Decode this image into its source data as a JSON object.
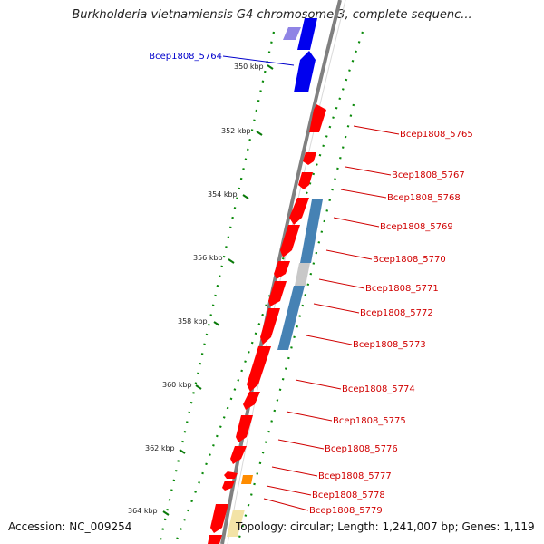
{
  "title": "Burkholderia vietnamiensis G4 chromosome 3, complete sequenc...",
  "footer": {
    "accession": "Accession: NC_009254",
    "topology": "Topology: circular; Length: 1,241,007 bp; Genes: 1,119"
  },
  "colors": {
    "forward_gene": "#ff0000",
    "reverse_gene": "#0000ff",
    "faded_gene": "#7b6fe0",
    "cds_feature": "#4682b4",
    "gray_feature": "#c8c8c8",
    "orange_feature": "#ff8c00",
    "pale_feature": "#f5e6a8",
    "backbone": "#808080",
    "tick_dots": "#008000",
    "label_red": "#cc0000",
    "label_blue": "#0000cc"
  },
  "kbp_ticks": [
    {
      "label": "350 kbp",
      "kbp": 350
    },
    {
      "label": "352 kbp",
      "kbp": 352
    },
    {
      "label": "354 kbp",
      "kbp": 354
    },
    {
      "label": "356 kbp",
      "kbp": 356
    },
    {
      "label": "358 kbp",
      "kbp": 358
    },
    {
      "label": "360 kbp",
      "kbp": 360
    },
    {
      "label": "362 kbp",
      "kbp": 362
    },
    {
      "label": "364 kbp",
      "kbp": 364
    }
  ],
  "genes": [
    {
      "label": "Bcep1808_5764",
      "strand": "reverse",
      "start_kbp": 348.9,
      "end_kbp": 350.8
    },
    {
      "label": "Bcep1808_5765",
      "strand": "forward",
      "start_kbp": 351.6,
      "end_kbp": 352.5
    },
    {
      "label": "Bcep1808_5767",
      "strand": "forward",
      "start_kbp": 352.9,
      "end_kbp": 353.3
    },
    {
      "label": "Bcep1808_5768",
      "strand": "forward",
      "start_kbp": 353.5,
      "end_kbp": 354.0
    },
    {
      "label": "Bcep1808_5769",
      "strand": "forward",
      "start_kbp": 354.1,
      "end_kbp": 355.0
    },
    {
      "label": "Bcep1808_5770",
      "strand": "forward",
      "start_kbp": 355.1,
      "end_kbp": 356.1
    },
    {
      "label": "Bcep1808_5771",
      "strand": "forward",
      "start_kbp": 356.2,
      "end_kbp": 356.8
    },
    {
      "label": "Bcep1808_5772",
      "strand": "forward",
      "start_kbp": 356.9,
      "end_kbp": 357.7
    },
    {
      "label": "Bcep1808_5773",
      "strand": "forward",
      "start_kbp": 357.8,
      "end_kbp": 359.0
    },
    {
      "label": "Bcep1808_5774",
      "strand": "forward",
      "start_kbp": 359.1,
      "end_kbp": 360.6
    },
    {
      "label": "Bcep1808_5775",
      "strand": "forward",
      "start_kbp": 360.6,
      "end_kbp": 361.5
    },
    {
      "label": "Bcep1808_5776",
      "strand": "forward",
      "start_kbp": 361.6,
      "end_kbp": 362.4
    },
    {
      "label": "Bcep1808_5777",
      "strand": "forward",
      "start_kbp": 362.6,
      "end_kbp": 362.9
    },
    {
      "label": "Bcep1808_5778",
      "strand": "forward",
      "start_kbp": 363.0,
      "end_kbp": 363.3
    },
    {
      "label": "Bcep1808_5779",
      "strand": "forward",
      "start_kbp": 364.1,
      "end_kbp": 364.6
    }
  ]
}
